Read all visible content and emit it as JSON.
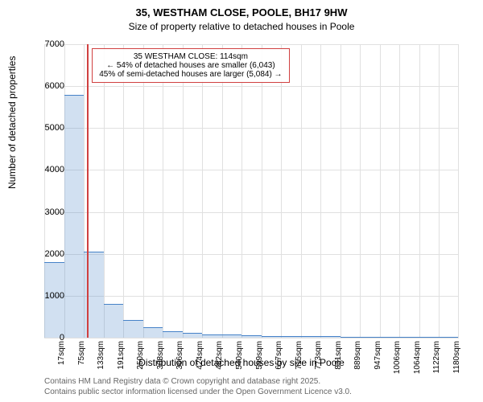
{
  "title": "35, WESTHAM CLOSE, POOLE, BH17 9HW",
  "subtitle": "Size of property relative to detached houses in Poole",
  "y_axis_label": "Number of detached properties",
  "x_axis_label": "Distribution of detached houses by size in Poole",
  "chart": {
    "type": "histogram",
    "ylim": [
      0,
      7000
    ],
    "y_ticks": [
      0,
      1000,
      2000,
      3000,
      4000,
      5000,
      6000,
      7000
    ],
    "x_categories": [
      "17sqm",
      "75sqm",
      "133sqm",
      "191sqm",
      "250sqm",
      "308sqm",
      "366sqm",
      "424sqm",
      "482sqm",
      "540sqm",
      "599sqm",
      "657sqm",
      "715sqm",
      "773sqm",
      "831sqm",
      "889sqm",
      "947sqm",
      "1006sqm",
      "1064sqm",
      "1122sqm",
      "1180sqm"
    ],
    "values": [
      1800,
      5800,
      2050,
      800,
      420,
      250,
      150,
      110,
      80,
      70,
      50,
      45,
      40,
      30,
      30,
      20,
      20,
      15,
      15,
      10,
      10
    ],
    "bar_color_fill": "rgba(70,130,200,0.25)",
    "bar_border_color": "#4682c8",
    "grid_color": "#e0e0e0",
    "background_color": "#ffffff",
    "pointer_color": "#d04040",
    "pointer_category_index": 2,
    "pointer_offset": -0.33
  },
  "info_box": {
    "line1": "35 WESTHAM CLOSE: 114sqm",
    "line2": "← 54% of detached houses are smaller (6,043)",
    "line3": "45% of semi-detached houses are larger (5,084) →"
  },
  "footer": {
    "line1": "Contains HM Land Registry data © Crown copyright and database right 2025.",
    "line2": "Contains public sector information licensed under the Open Government Licence v3.0."
  }
}
